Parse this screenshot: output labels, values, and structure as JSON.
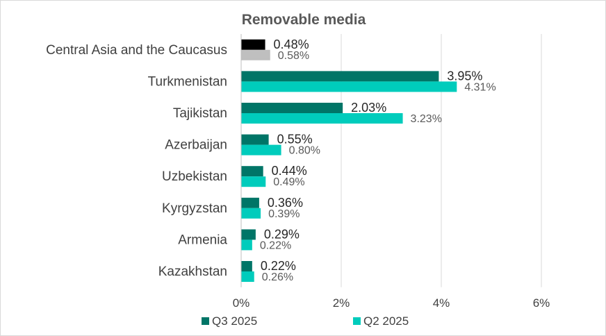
{
  "chart_data": {
    "type": "bar",
    "orientation": "horizontal",
    "title": "Removable media",
    "categories": [
      "Central Asia and the Caucasus",
      "Turkmenistan",
      "Tajikistan",
      "Azerbaijan",
      "Uzbekistan",
      "Kyrgyzstan",
      "Armenia",
      "Kazakhstan"
    ],
    "series": [
      {
        "name": "Q3 2025",
        "values": [
          0.48,
          3.95,
          2.03,
          0.55,
          0.44,
          0.36,
          0.29,
          0.22
        ],
        "labels": [
          "0.48%",
          "3.95%",
          "2.03%",
          "0.55%",
          "0.44%",
          "0.36%",
          "0.29%",
          "0.22%"
        ],
        "color": "#007567",
        "highlight_color": "#000000"
      },
      {
        "name": "Q2 2025",
        "values": [
          0.58,
          4.31,
          3.23,
          0.8,
          0.49,
          0.39,
          0.22,
          0.26
        ],
        "labels": [
          "0.58%",
          "4.31%",
          "3.23%",
          "0.80%",
          "0.49%",
          "0.39%",
          "0.22%",
          "0.26%"
        ],
        "color": "#00ccbc",
        "highlight_color": "#bfbfbf"
      }
    ],
    "xlim": [
      0,
      6
    ],
    "xticks": [
      "0%",
      "2%",
      "4%",
      "6%"
    ],
    "grid": true,
    "legend_position": "bottom"
  }
}
